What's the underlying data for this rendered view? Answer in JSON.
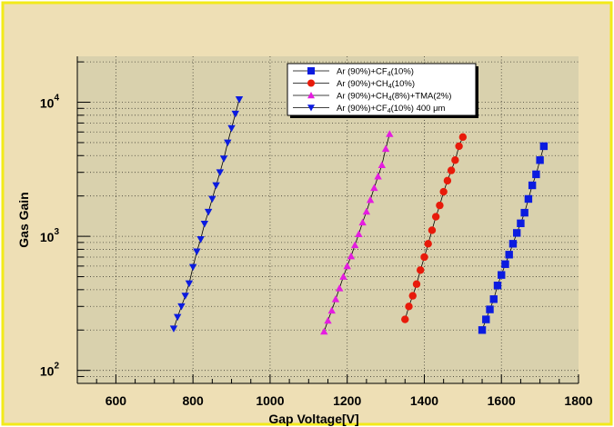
{
  "colors": {
    "frame_background": "#eedfb5",
    "frame_border": "#f2ea1a",
    "plot_background": "#d9d1ad",
    "legend_background": "#ffffff",
    "grid": "#000000",
    "axis": "#000000"
  },
  "chart_data": {
    "type": "scatter",
    "title": "",
    "xlabel": "Gap Voltage[V]",
    "ylabel": "Gas Gain",
    "xlim": [
      500,
      1800
    ],
    "ylim": [
      80,
      22000
    ],
    "yscale": "log",
    "grid": true,
    "legend_position": "top-center",
    "x_ticks": [
      600,
      800,
      1000,
      1200,
      1400,
      1600,
      1800
    ],
    "x_tick_labels": [
      "600",
      "800",
      "1000",
      "1200",
      "1400",
      "1600",
      "1800"
    ],
    "y_ticks": [
      100,
      1000,
      10000
    ],
    "y_tick_labels": [
      {
        "base": "10",
        "exp": "2"
      },
      {
        "base": "10",
        "exp": "3"
      },
      {
        "base": "10",
        "exp": "4"
      }
    ],
    "series": [
      {
        "name": "Ar (90%)+CF4(10%)",
        "legend_parts": [
          {
            "text": "Ar (90%)+CF",
            "sub": false
          },
          {
            "text": "4",
            "sub": true
          },
          {
            "text": "(10%)",
            "sub": false
          }
        ],
        "color": "#0b1be0",
        "marker": "square",
        "x": [
          1550,
          1560,
          1570,
          1580,
          1590,
          1600,
          1610,
          1620,
          1630,
          1640,
          1650,
          1660,
          1670,
          1680,
          1690,
          1700,
          1710
        ],
        "y": [
          200,
          240,
          285,
          340,
          430,
          515,
          620,
          730,
          880,
          1060,
          1250,
          1500,
          1900,
          2400,
          2900,
          3700,
          4700
        ]
      },
      {
        "name": "Ar (90%)+CH4(10%)",
        "legend_parts": [
          {
            "text": "Ar (90%)+CH",
            "sub": false
          },
          {
            "text": "4",
            "sub": true
          },
          {
            "text": "(10%)",
            "sub": false
          }
        ],
        "color": "#e81a0a",
        "marker": "circle",
        "x": [
          1350,
          1360,
          1370,
          1380,
          1390,
          1400,
          1410,
          1420,
          1430,
          1440,
          1450,
          1460,
          1470,
          1480,
          1490,
          1500
        ],
        "y": [
          240,
          300,
          360,
          440,
          560,
          700,
          880,
          1110,
          1400,
          1700,
          2150,
          2600,
          3100,
          3700,
          4700,
          5500
        ]
      },
      {
        "name": "Ar (90%)+CH4(8%)+TMA(2%)",
        "legend_parts": [
          {
            "text": "Ar (90%)+CH",
            "sub": false
          },
          {
            "text": "4",
            "sub": true
          },
          {
            "text": "(8%)+TMA(2%)",
            "sub": false
          }
        ],
        "color": "#e51ce0",
        "marker": "triangle-up",
        "x": [
          1140,
          1150,
          1160,
          1170,
          1180,
          1190,
          1200,
          1210,
          1220,
          1230,
          1240,
          1250,
          1260,
          1270,
          1280,
          1290,
          1300,
          1310
        ],
        "y": [
          195,
          235,
          280,
          340,
          410,
          500,
          600,
          710,
          860,
          1040,
          1270,
          1530,
          1870,
          2300,
          2800,
          3400,
          4500,
          5800
        ]
      },
      {
        "name": "Ar (90%)+CF4(10%) 400 μm",
        "legend_parts": [
          {
            "text": "Ar (90%)+CF",
            "sub": false
          },
          {
            "text": "4",
            "sub": true
          },
          {
            "text": "(10%) 400 μm",
            "sub": false
          }
        ],
        "color": "#0b1be0",
        "marker": "triangle-down",
        "x": [
          750,
          760,
          770,
          780,
          790,
          800,
          810,
          820,
          830,
          840,
          850,
          860,
          870,
          880,
          890,
          900,
          910,
          920
        ],
        "y": [
          205,
          250,
          300,
          360,
          445,
          590,
          770,
          950,
          1240,
          1520,
          1900,
          2400,
          3000,
          3800,
          5000,
          6400,
          8200,
          10500
        ]
      }
    ]
  }
}
